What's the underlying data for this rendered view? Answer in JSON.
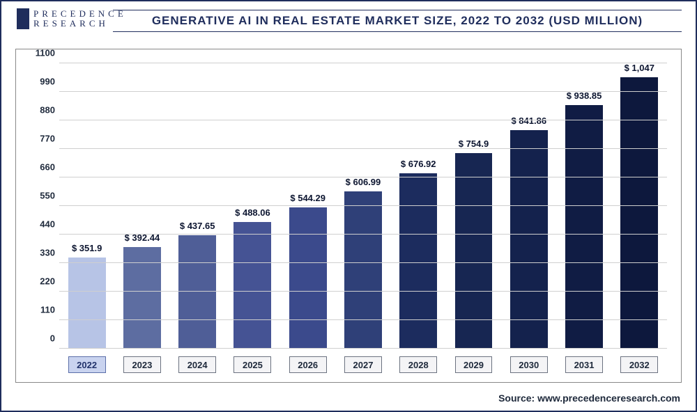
{
  "logo": {
    "line1": "PRECEDENCE",
    "line2": "RESEARCH"
  },
  "title": "GENERATIVE AI IN REAL ESTATE MARKET SIZE, 2022 TO 2032 (USD MILLION)",
  "chart": {
    "type": "bar",
    "ylim": [
      0,
      1100
    ],
    "ytick_step": 110,
    "grid_color": "#cfcfcf",
    "border_color": "#888888",
    "background_color": "#ffffff",
    "label_fontsize": 13,
    "label_color": "#0c1530",
    "bar_width": 0.68,
    "categories": [
      "2022",
      "2023",
      "2024",
      "2025",
      "2026",
      "2027",
      "2028",
      "2029",
      "2030",
      "2031",
      "2032"
    ],
    "values": [
      351.9,
      392.44,
      437.65,
      488.06,
      544.29,
      606.99,
      676.92,
      754.9,
      841.86,
      938.85,
      1047
    ],
    "value_labels": [
      "$ 351.9",
      "$ 392.44",
      "$ 437.65",
      "$ 488.06",
      "$ 544.29",
      "$ 606.99",
      "$ 676.92",
      "$ 754.9",
      "$ 841.86",
      "$ 938.85",
      "$ 1,047"
    ],
    "bar_colors": [
      "#b7c4e6",
      "#5d6da1",
      "#4f5e97",
      "#455394",
      "#3b4a8c",
      "#2f4078",
      "#1c2c5e",
      "#172652",
      "#14224d",
      "#101c44",
      "#0d183d"
    ],
    "y_ticks": [
      "0",
      "110",
      "220",
      "330",
      "440",
      "550",
      "660",
      "770",
      "880",
      "990",
      "1100"
    ],
    "x_box_bg": "#f4f4f6",
    "x_box_first_bg": "#c9d3ef"
  },
  "source": "Source: www.precedenceresearch.com"
}
